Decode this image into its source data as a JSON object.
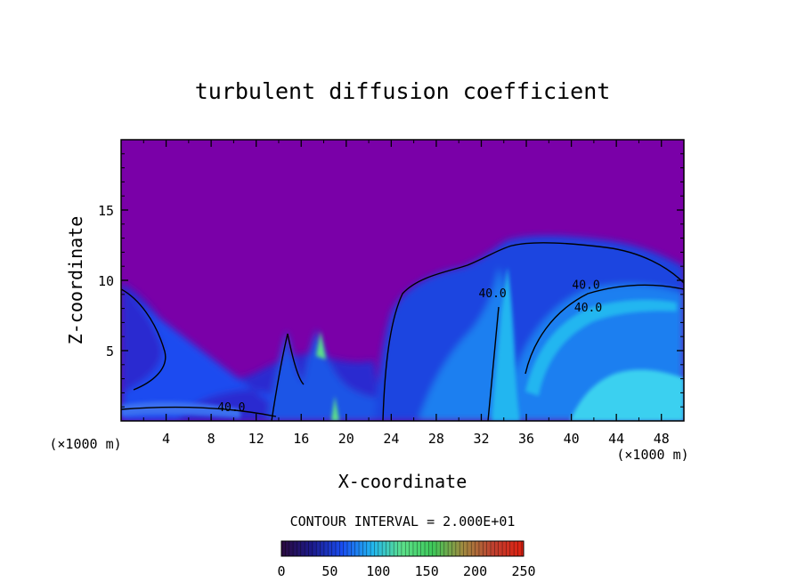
{
  "chart_data": {
    "type": "heatmap",
    "title": "turbulent diffusion coefficient",
    "xlabel": "X-coordinate",
    "ylabel": "Z-coordinate",
    "x_unit_label": "(×1000 m)",
    "y_unit_label": "(×1000 m)",
    "xlim": [
      0,
      50
    ],
    "ylim": [
      0,
      20
    ],
    "xticks": [
      4,
      8,
      12,
      16,
      20,
      24,
      28,
      32,
      36,
      40,
      44,
      48
    ],
    "yticks": [
      5,
      10,
      15
    ],
    "contour_interval_label": "CONTOUR INTERVAL = 2.000E+01",
    "contour_interval": 20,
    "contour_labels": [
      {
        "x": 33.0,
        "z": 8.8,
        "text": "40.0"
      },
      {
        "x": 41.3,
        "z": 9.4,
        "text": "40.0"
      },
      {
        "x": 41.5,
        "z": 7.8,
        "text": "40.0"
      },
      {
        "x": 9.8,
        "z": 0.7,
        "text": "40.0"
      }
    ],
    "colorbar": {
      "min": 0,
      "max": 250,
      "ticks": [
        0,
        50,
        100,
        150,
        200,
        250
      ],
      "colors": [
        "#2a0a3d",
        "#1c1a8a",
        "#1a4cf0",
        "#22b6f0",
        "#5ce08a",
        "#3ec95a",
        "#a08a40",
        "#c04030",
        "#e02010"
      ]
    },
    "background_value": 0,
    "background_color": "#7a00a8"
  }
}
